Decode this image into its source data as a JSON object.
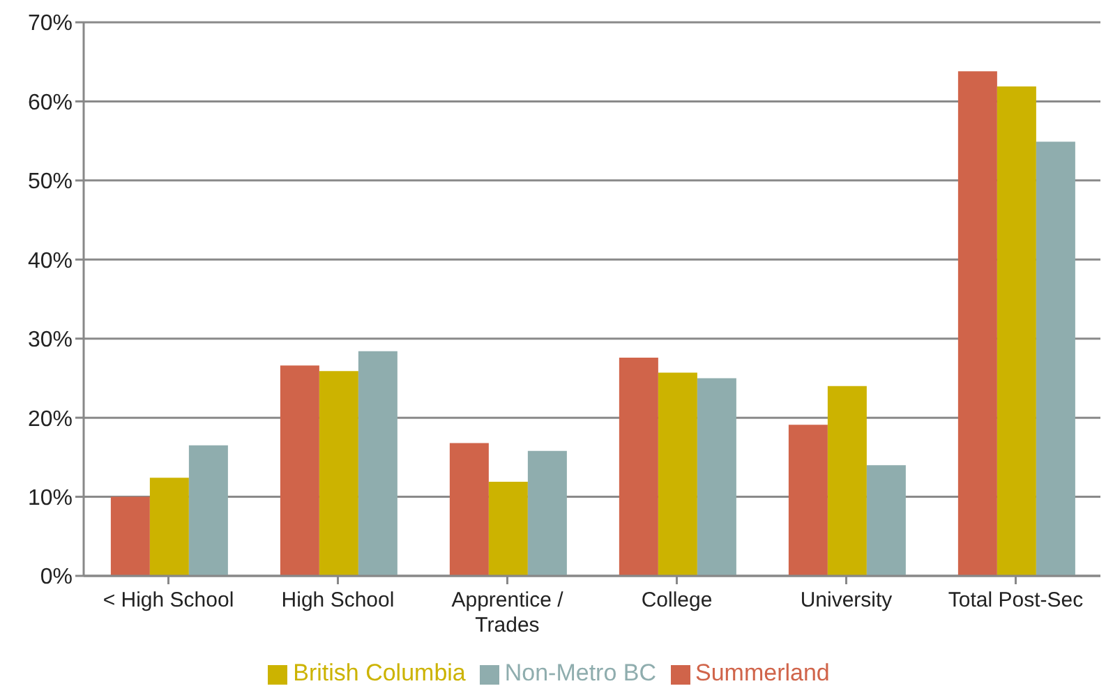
{
  "chart_data": {
    "type": "bar",
    "categories": [
      "< High School",
      "High School",
      "Apprentice / Trades",
      "College",
      "University",
      "Total Post-Sec"
    ],
    "series": [
      {
        "name": "Summerland",
        "color": "#d0644a",
        "values": [
          10.0,
          26.6,
          16.8,
          27.6,
          19.1,
          63.8
        ]
      },
      {
        "name": "British Columbia",
        "color": "#ccb300",
        "values": [
          12.4,
          25.9,
          11.9,
          25.7,
          24.0,
          61.9
        ]
      },
      {
        "name": "Non-Metro BC",
        "color": "#8fadae",
        "values": [
          16.5,
          28.4,
          15.8,
          25.0,
          14.0,
          54.9
        ]
      }
    ],
    "ylim": [
      0,
      70
    ],
    "yticks": [
      {
        "value": 0,
        "label": "0%"
      },
      {
        "value": 10,
        "label": "10%"
      },
      {
        "value": 20,
        "label": "20%"
      },
      {
        "value": 30,
        "label": "30%"
      },
      {
        "value": 40,
        "label": "40%"
      },
      {
        "value": 50,
        "label": "50%"
      },
      {
        "value": 60,
        "label": "60%"
      },
      {
        "value": 70,
        "label": "70%"
      }
    ],
    "grid": "y",
    "legend": "bottom"
  }
}
